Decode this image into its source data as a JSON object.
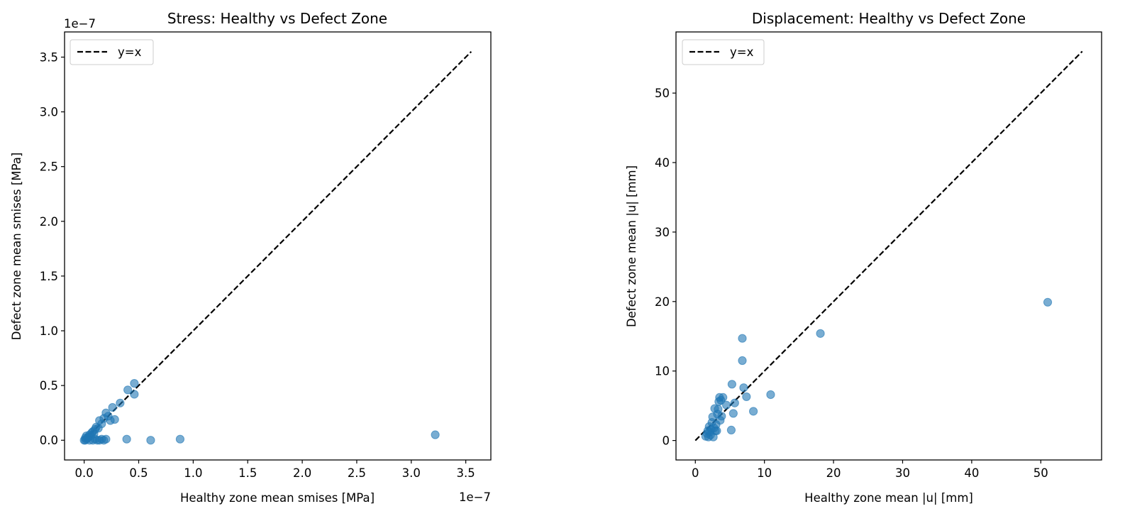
{
  "chart_data": [
    {
      "type": "scatter",
      "title": "Stress: Healthy vs Defect Zone",
      "xlabel": "Healthy zone mean smises [MPa]",
      "ylabel": "Defect zone mean smises [MPa]",
      "x_offset_label": "1e−7",
      "y_offset_label": "1e−7",
      "xlim": [
        -0.18,
        3.73
      ],
      "ylim": [
        -0.18,
        3.73
      ],
      "x_ticks": [
        0.0,
        0.5,
        1.0,
        1.5,
        2.0,
        2.5,
        3.0,
        3.5
      ],
      "x_tick_labels": [
        "0.0",
        "0.5",
        "1.0",
        "1.5",
        "2.0",
        "2.5",
        "3.0",
        "3.5"
      ],
      "y_ticks": [
        0.0,
        0.5,
        1.0,
        1.5,
        2.0,
        2.5,
        3.0,
        3.5
      ],
      "y_tick_labels": [
        "0.0",
        "0.5",
        "1.0",
        "1.5",
        "2.0",
        "2.5",
        "3.0",
        "3.5"
      ],
      "grid": false,
      "legend": {
        "position": "top-left",
        "entries": [
          "y=x"
        ]
      },
      "reference_line": {
        "name": "y=x",
        "from": [
          0,
          0
        ],
        "to": [
          3.55,
          3.55
        ],
        "color": "#000000",
        "style": "dashed"
      },
      "point_color": "#1f77b4",
      "series": [
        {
          "points": [
            [
              0.0,
              0.0
            ],
            [
              0.01,
              0.0
            ],
            [
              0.02,
              0.01
            ],
            [
              0.01,
              0.02
            ],
            [
              0.03,
              0.02
            ],
            [
              0.02,
              0.04
            ],
            [
              0.04,
              0.03
            ],
            [
              0.05,
              0.05
            ],
            [
              0.06,
              0.04
            ],
            [
              0.05,
              0.0
            ],
            [
              0.07,
              0.07
            ],
            [
              0.08,
              0.08
            ],
            [
              0.09,
              0.06
            ],
            [
              0.1,
              0.1
            ],
            [
              0.11,
              0.12
            ],
            [
              0.13,
              0.11
            ],
            [
              0.14,
              0.18
            ],
            [
              0.16,
              0.15
            ],
            [
              0.18,
              0.2
            ],
            [
              0.2,
              0.25
            ],
            [
              0.22,
              0.22
            ],
            [
              0.24,
              0.18
            ],
            [
              0.26,
              0.3
            ],
            [
              0.28,
              0.19
            ],
            [
              0.33,
              0.34
            ],
            [
              0.4,
              0.46
            ],
            [
              0.46,
              0.52
            ],
            [
              0.46,
              0.42
            ],
            [
              0.08,
              0.0
            ],
            [
              0.1,
              0.01
            ],
            [
              0.12,
              0.0
            ],
            [
              0.14,
              0.0
            ],
            [
              0.16,
              0.01
            ],
            [
              0.18,
              0.0
            ],
            [
              0.2,
              0.01
            ],
            [
              0.39,
              0.01
            ],
            [
              0.61,
              0.0
            ],
            [
              0.88,
              0.01
            ],
            [
              3.22,
              0.05
            ]
          ]
        }
      ]
    },
    {
      "type": "scatter",
      "title": "Displacement: Healthy vs Defect Zone",
      "xlabel": "Healthy zone mean |u| [mm]",
      "ylabel": "Defect zone mean |u| [mm]",
      "xlim": [
        -2.8,
        58.8
      ],
      "ylim": [
        -2.8,
        58.8
      ],
      "x_ticks": [
        0,
        10,
        20,
        30,
        40,
        50
      ],
      "x_tick_labels": [
        "0",
        "10",
        "20",
        "30",
        "40",
        "50"
      ],
      "y_ticks": [
        0,
        10,
        20,
        30,
        40,
        50
      ],
      "y_tick_labels": [
        "0",
        "10",
        "20",
        "30",
        "40",
        "50"
      ],
      "grid": false,
      "legend": {
        "position": "top-left",
        "entries": [
          "y=x"
        ]
      },
      "reference_line": {
        "name": "y=x",
        "from": [
          0,
          0
        ],
        "to": [
          56,
          56
        ],
        "color": "#000000",
        "style": "dashed"
      },
      "point_color": "#1f77b4",
      "series": [
        {
          "points": [
            [
              1.5,
              0.6
            ],
            [
              1.7,
              1.0
            ],
            [
              1.8,
              1.4
            ],
            [
              1.9,
              0.5
            ],
            [
              2.0,
              2.0
            ],
            [
              2.1,
              1.2
            ],
            [
              2.2,
              0.8
            ],
            [
              2.3,
              1.6
            ],
            [
              2.4,
              2.6
            ],
            [
              2.5,
              3.4
            ],
            [
              2.6,
              0.5
            ],
            [
              2.7,
              1.8
            ],
            [
              2.8,
              4.6
            ],
            [
              2.9,
              1.4
            ],
            [
              3.0,
              2.3
            ],
            [
              3.1,
              1.4
            ],
            [
              3.2,
              3.8
            ],
            [
              3.3,
              4.5
            ],
            [
              3.4,
              5.6
            ],
            [
              3.5,
              6.2
            ],
            [
              3.6,
              2.9
            ],
            [
              3.7,
              5.8
            ],
            [
              3.8,
              3.5
            ],
            [
              4.0,
              6.2
            ],
            [
              4.5,
              5.1
            ],
            [
              5.2,
              1.5
            ],
            [
              5.3,
              8.1
            ],
            [
              5.5,
              3.9
            ],
            [
              5.7,
              5.4
            ],
            [
              6.8,
              14.7
            ],
            [
              6.8,
              11.5
            ],
            [
              7.0,
              7.6
            ],
            [
              7.4,
              6.3
            ],
            [
              8.4,
              4.2
            ],
            [
              10.9,
              6.6
            ],
            [
              18.1,
              15.4
            ],
            [
              51.0,
              19.9
            ]
          ]
        }
      ]
    }
  ]
}
